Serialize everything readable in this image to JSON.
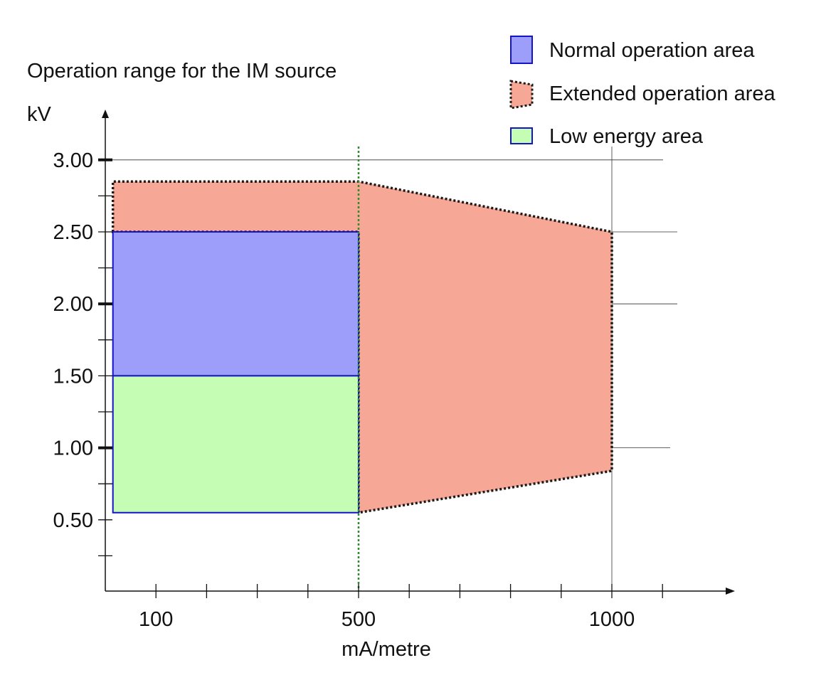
{
  "chart_data": {
    "type": "area",
    "title": "Operation range for the IM source",
    "ylabel": "kV",
    "xlabel": "mA/metre",
    "xlim": [
      0,
      1220
    ],
    "ylim": [
      0.05,
      3.15
    ],
    "x_ticks_major": [
      100,
      500,
      1000
    ],
    "x_ticks_minor": [
      200,
      300,
      400,
      600,
      700,
      800,
      900,
      1100
    ],
    "x_tick_labels": [
      "100",
      "500",
      "1000"
    ],
    "y_ticks_major": [
      1.0,
      2.0,
      3.0
    ],
    "y_ticks_labeled": [
      0.5,
      1.0,
      1.5,
      2.0,
      2.5,
      3.0
    ],
    "y_ticks_minor": [
      0.25,
      0.75,
      1.25,
      1.75,
      2.25,
      2.75
    ],
    "y_tick_labels": [
      "0.50",
      "1.00",
      "1.50",
      "2.00",
      "2.50",
      "3.00"
    ],
    "gridlines_y": [
      1.0,
      2.0,
      2.5,
      3.0
    ],
    "gridlines_x": [
      1000
    ],
    "marker_line_x": 500,
    "legend_position": "top-right",
    "areas": [
      {
        "name": "Extended operation area",
        "style": "dotted",
        "fill": "#f7a796",
        "stroke": "#1a1a1a",
        "points": [
          [
            15,
            2.5
          ],
          [
            15,
            2.85
          ],
          [
            500,
            2.85
          ],
          [
            1000,
            2.5
          ],
          [
            1000,
            0.84
          ],
          [
            500,
            0.55
          ],
          [
            500,
            2.5
          ]
        ]
      },
      {
        "name": "Normal operation area",
        "style": "solid",
        "fill": "#9d9dfa",
        "stroke": "#1515c8",
        "points": [
          [
            15,
            1.5
          ],
          [
            15,
            2.5
          ],
          [
            500,
            2.5
          ],
          [
            500,
            1.5
          ]
        ]
      },
      {
        "name": "Low energy area",
        "style": "solid",
        "fill": "#c5fdb4",
        "stroke": "#1515c8",
        "points": [
          [
            15,
            0.55
          ],
          [
            15,
            1.5
          ],
          [
            500,
            1.5
          ],
          [
            500,
            0.55
          ]
        ]
      }
    ],
    "legend": [
      {
        "label": "Normal operation area",
        "fill": "#9d9dfa",
        "stroke": "#1515c8",
        "style": "solid"
      },
      {
        "label": "Extended operation area",
        "fill": "#f7a796",
        "stroke": "#1a1a1a",
        "style": "dotted"
      },
      {
        "label": "Low energy area",
        "fill": "#c5fdb4",
        "stroke": "#1515c8",
        "style": "solid"
      }
    ]
  }
}
